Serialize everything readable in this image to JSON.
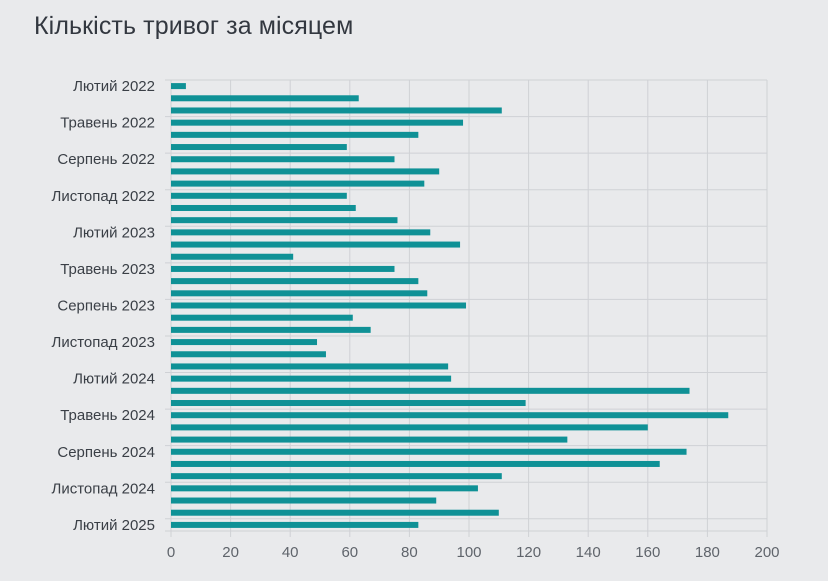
{
  "chart_data": {
    "type": "bar",
    "orientation": "horizontal",
    "title": "Кількість тривог за місяцем",
    "xlabel": "",
    "ylabel": "",
    "xlim": [
      0,
      200
    ],
    "x_ticks": [
      0,
      20,
      40,
      60,
      80,
      100,
      120,
      140,
      160,
      180,
      200
    ],
    "grid": true,
    "legend": "none",
    "bar_color": "#0f9196",
    "shown_category_labels": [
      "Лютий 2022",
      "Травень 2022",
      "Серпень 2022",
      "Листопад 2022",
      "Лютий 2023",
      "Травень 2023",
      "Серпень 2023",
      "Листопад 2023",
      "Лютий 2024",
      "Травень 2024",
      "Серпень 2024",
      "Листопад 2024",
      "Лютий 2025"
    ],
    "values": [
      5,
      63,
      111,
      98,
      83,
      59,
      75,
      90,
      85,
      59,
      62,
      76,
      87,
      97,
      41,
      75,
      83,
      86,
      99,
      61,
      67,
      49,
      52,
      93,
      94,
      174,
      119,
      187,
      160,
      133,
      173,
      164,
      111,
      103,
      89,
      110,
      83
    ]
  }
}
